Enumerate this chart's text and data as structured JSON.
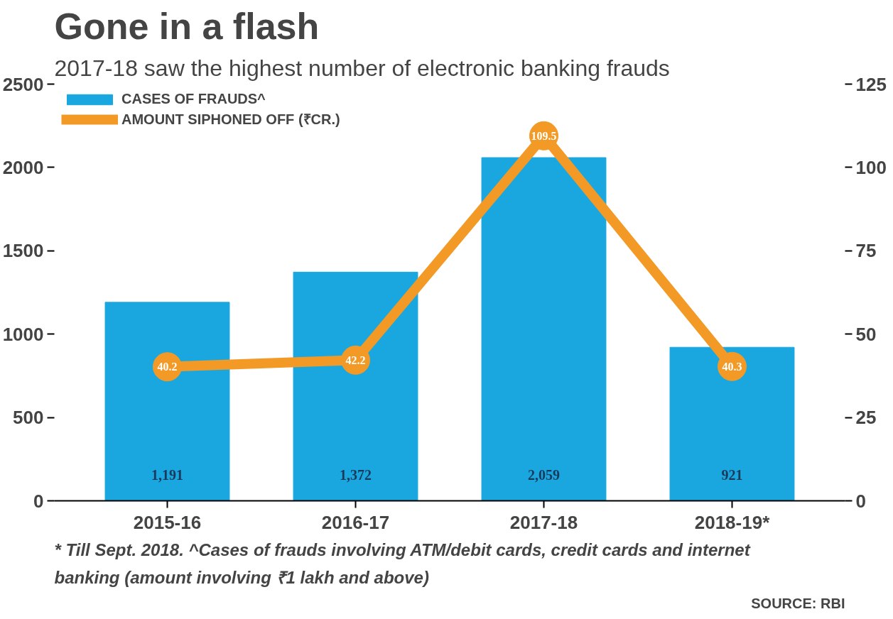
{
  "chart_data": {
    "type": "bar",
    "title": "Gone in a flash",
    "subtitle": "2017-18 saw the highest number of electronic banking frauds",
    "categories": [
      "2015-16",
      "2016-17",
      "2017-18",
      "2018-19*"
    ],
    "series": [
      {
        "name": "CASES OF FRAUDS^",
        "color": "#1aa7e0",
        "values": [
          1191,
          1372,
          2059,
          921
        ],
        "value_labels": [
          "1,191",
          "1,372",
          "2,059",
          "921"
        ]
      },
      {
        "name": "AMOUNT SIPHONED OFF (₹CR.)",
        "type": "line",
        "marker": "circle",
        "axis": "y2",
        "color": "#f39a26",
        "values": [
          40.2,
          42.2,
          109.5,
          40.3
        ],
        "value_labels": [
          "40.2",
          "42.2",
          "109.5",
          "40.3"
        ]
      }
    ],
    "ylim": [
      0,
      2500
    ],
    "yticks": [
      0,
      500,
      1000,
      1500,
      2000,
      2500
    ],
    "y2lim": [
      0,
      125
    ],
    "y2ticks": [
      0,
      25,
      50,
      75,
      100,
      125
    ],
    "grid": false,
    "legend": "top left",
    "annotations": [
      "* Till Sept. 2018. ^Cases of frauds involving ATM/debit cards, credit cards and internet banking (amount involving ₹1 lakh and above)",
      "SOURCE: RBI"
    ]
  }
}
